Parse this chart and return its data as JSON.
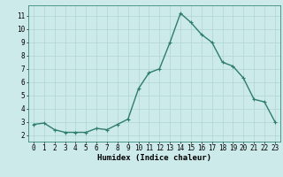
{
  "x": [
    0,
    1,
    2,
    3,
    4,
    5,
    6,
    7,
    8,
    9,
    10,
    11,
    12,
    13,
    14,
    15,
    16,
    17,
    18,
    19,
    20,
    21,
    22,
    23
  ],
  "y": [
    2.8,
    2.9,
    2.4,
    2.2,
    2.2,
    2.2,
    2.5,
    2.4,
    2.8,
    3.2,
    5.5,
    6.7,
    7.0,
    9.0,
    11.2,
    10.5,
    9.6,
    9.0,
    7.5,
    7.2,
    6.3,
    4.7,
    4.5,
    3.0
  ],
  "line_color": "#2e7d6e",
  "marker": "+",
  "marker_size": 3.5,
  "bg_color": "#cceaea",
  "grid_color": "#b0d4d4",
  "xlabel": "Humidex (Indice chaleur)",
  "xlim": [
    -0.5,
    23.5
  ],
  "ylim": [
    1.5,
    11.8
  ],
  "xticks": [
    0,
    1,
    2,
    3,
    4,
    5,
    6,
    7,
    8,
    9,
    10,
    11,
    12,
    13,
    14,
    15,
    16,
    17,
    18,
    19,
    20,
    21,
    22,
    23
  ],
  "yticks": [
    2,
    3,
    4,
    5,
    6,
    7,
    8,
    9,
    10,
    11
  ],
  "xlabel_fontsize": 6.5,
  "tick_fontsize": 5.5,
  "line_width": 1.0
}
